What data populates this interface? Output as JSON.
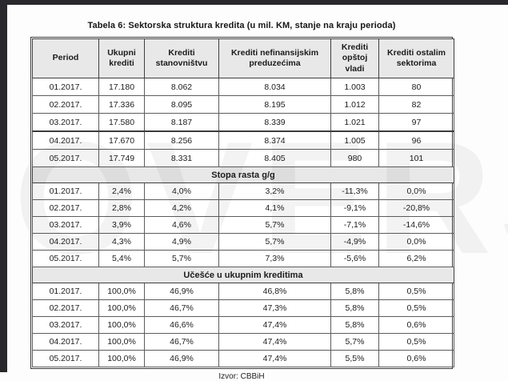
{
  "page": {
    "title": "Tabela 6: Sektorska struktura kredita (u mil. KM, stanje na kraju perioda)",
    "source_note": "Izvor: CBBiH",
    "watermark_text": "IOVERS"
  },
  "table": {
    "columns": [
      "Period",
      "Ukupni krediti",
      "Krediti stanovništvu",
      "Krediti nefinansijskim preduzećima",
      "Krediti opštoj vladi",
      "Krediti ostalim sektorima"
    ],
    "sections": [
      {
        "header": "",
        "rows": [
          [
            "01.2017.",
            "17.180",
            "8.062",
            "8.034",
            "1.003",
            "80"
          ],
          [
            "02.2017.",
            "17.336",
            "8.095",
            "8.195",
            "1.012",
            "82"
          ],
          [
            "03.2017.",
            "17.580",
            "8.187",
            "8.339",
            "1.021",
            "97"
          ],
          [
            "04.2017.",
            "17.670",
            "8.256",
            "8.374",
            "1.005",
            "96"
          ],
          [
            "05.2017.",
            "17.749",
            "8.331",
            "8.405",
            "980",
            "101"
          ]
        ]
      },
      {
        "header": "Stopa rasta g/g",
        "rows": [
          [
            "01.2017.",
            "2,4%",
            "4,0%",
            "3,2%",
            "-11,3%",
            "0,0%"
          ],
          [
            "02.2017.",
            "2,8%",
            "4,2%",
            "4,1%",
            "-9,1%",
            "-20,8%"
          ],
          [
            "03.2017.",
            "3,9%",
            "4,6%",
            "5,7%",
            "-7,1%",
            "-14,6%"
          ],
          [
            "04.2017.",
            "4,3%",
            "4,9%",
            "5,7%",
            "-4,9%",
            "0,0%"
          ],
          [
            "05.2017.",
            "5,4%",
            "5,7%",
            "7,3%",
            "-5,6%",
            "6,2%"
          ]
        ]
      },
      {
        "header": "Učešće u ukupnim kreditima",
        "rows": [
          [
            "01.2017.",
            "100,0%",
            "46,9%",
            "46,8%",
            "5,8%",
            "0,5%"
          ],
          [
            "02.2017.",
            "100,0%",
            "46,7%",
            "47,3%",
            "5,8%",
            "0,5%"
          ],
          [
            "03.2017.",
            "100,0%",
            "46,6%",
            "47,4%",
            "5,8%",
            "0,6%"
          ],
          [
            "04.2017.",
            "100,0%",
            "46,7%",
            "47,4%",
            "5,7%",
            "0,5%"
          ],
          [
            "05.2017.",
            "100,0%",
            "46,9%",
            "47,4%",
            "5,5%",
            "0,6%"
          ]
        ]
      }
    ]
  },
  "colors": {
    "frame_dark": "#28282d",
    "header_bg": "#e9e8e9",
    "grid_border": "#5d5d5d"
  }
}
